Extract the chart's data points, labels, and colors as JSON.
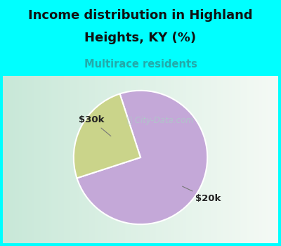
{
  "title_line1": "Income distribution in Highland",
  "title_line2": "Heights, KY (%)",
  "subtitle": "Multirace residents",
  "slices": [
    75,
    25
  ],
  "slice_colors": [
    "#c4a8d8",
    "#cad48a"
  ],
  "bg_cyan": "#00ffff",
  "chart_bg_left": "#c8e8d8",
  "chart_bg_right": "#f5faf5",
  "title_color": "#111111",
  "subtitle_color": "#22aaaa",
  "label_color": "#222222",
  "watermark_text": "City-Data.com",
  "watermark_color": "#aec8c8",
  "label_30k": "$30k",
  "label_20k": "$20k",
  "startangle": 108,
  "figsize": [
    4.0,
    3.5
  ],
  "dpi": 100
}
